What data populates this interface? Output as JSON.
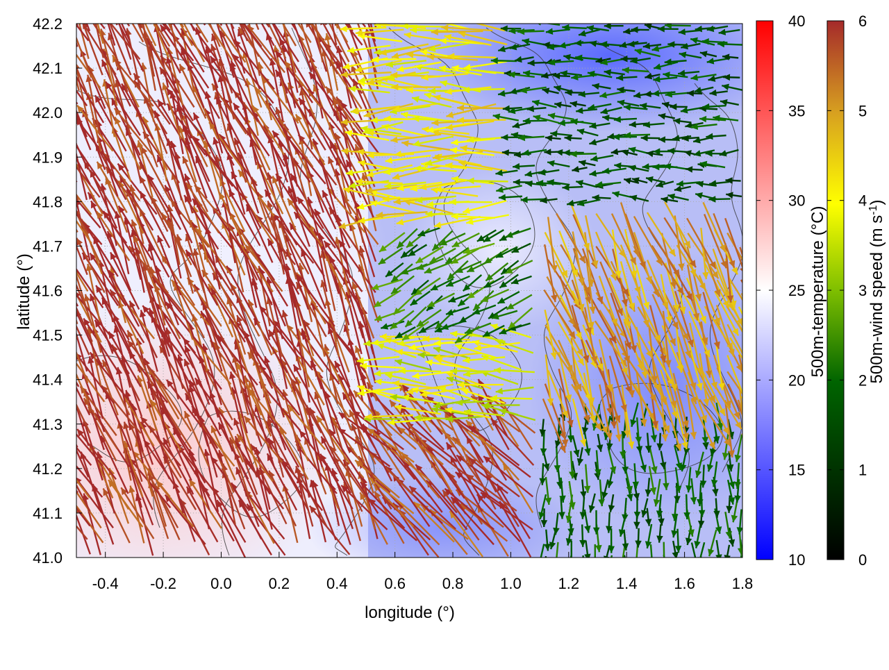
{
  "chart_data": {
    "type": "vector-field",
    "description_visible": "",
    "xlabel": "longitude (°)",
    "ylabel": "latitude (°)",
    "xlim": [
      -0.5,
      1.8
    ],
    "ylim": [
      41.0,
      42.2
    ],
    "xticks": [
      -0.4,
      -0.2,
      0.0,
      0.2,
      0.4,
      0.6,
      0.8,
      1.0,
      1.2,
      1.4,
      1.6,
      1.8
    ],
    "xtick_labels": [
      "-0.4",
      "-0.2",
      "0.0",
      "0.2",
      "0.4",
      "0.6",
      "0.8",
      "1.0",
      "1.2",
      "1.4",
      "1.6",
      "1.8"
    ],
    "yticks": [
      41.0,
      41.1,
      41.2,
      41.3,
      41.4,
      41.5,
      41.6,
      41.7,
      41.8,
      41.9,
      42.0,
      42.1,
      42.2
    ],
    "ytick_labels": [
      "41.0",
      "41.1",
      "41.2",
      "41.3",
      "41.4",
      "41.5",
      "41.6",
      "41.7",
      "41.8",
      "41.9",
      "42.0",
      "42.1",
      "42.2"
    ],
    "grid": true,
    "temperature_colorbar": {
      "label": "500m-temperature (°C)",
      "range": [
        10,
        40
      ],
      "ticks": [
        "10",
        "15",
        "20",
        "25",
        "30",
        "35",
        "40"
      ],
      "colors": [
        "#0000ff",
        "#ffffff",
        "#ff0000"
      ]
    },
    "wind_colorbar": {
      "label_main": "500m-wind speed (m s",
      "label_sup": "-1",
      "label_end": ")",
      "range": [
        0,
        6
      ],
      "ticks": [
        "0",
        "1",
        "2",
        "3",
        "4",
        "5",
        "6"
      ],
      "colors": [
        "#000000",
        "#006400",
        "#7fbf00",
        "#ffff00",
        "#d7a020",
        "#c87020",
        "#a52a2a"
      ]
    },
    "wind_regions": [
      {
        "lon": [
          -0.5,
          0.55
        ],
        "lat": [
          41.0,
          42.2
        ],
        "speed": 6.0,
        "direction_deg": 335
      },
      {
        "lon": [
          0.55,
          1.0
        ],
        "lat": [
          41.75,
          42.2
        ],
        "speed": 4.2,
        "direction_deg": 270
      },
      {
        "lon": [
          1.0,
          1.8
        ],
        "lat": [
          41.8,
          42.2
        ],
        "speed": 1.6,
        "direction_deg": 270
      },
      {
        "lon": [
          0.6,
          1.1
        ],
        "lat": [
          41.5,
          41.75
        ],
        "speed": 2.2,
        "direction_deg": 240
      },
      {
        "lon": [
          1.1,
          1.8
        ],
        "lat": [
          41.35,
          41.8
        ],
        "speed": 5.0,
        "direction_deg": 160
      },
      {
        "lon": [
          0.6,
          1.1
        ],
        "lat": [
          41.3,
          41.5
        ],
        "speed": 3.8,
        "direction_deg": 275
      },
      {
        "lon": [
          0.55,
          1.1
        ],
        "lat": [
          41.0,
          41.3
        ],
        "speed": 5.8,
        "direction_deg": 320
      },
      {
        "lon": [
          1.1,
          1.8
        ],
        "lat": [
          41.0,
          41.35
        ],
        "speed": 1.8,
        "direction_deg": 180
      }
    ],
    "temperature_regions": [
      {
        "lon": [
          -0.5,
          0.4
        ],
        "lat": [
          41.0,
          41.6
        ],
        "temp": 28
      },
      {
        "lon": [
          -0.5,
          0.5
        ],
        "lat": [
          41.6,
          42.2
        ],
        "temp": 24
      },
      {
        "lon": [
          1.0,
          1.8
        ],
        "lat": [
          41.8,
          42.2
        ],
        "temp": 15
      },
      {
        "lon": [
          0.6,
          1.8
        ],
        "lat": [
          41.0,
          41.8
        ],
        "temp": 19
      }
    ]
  }
}
